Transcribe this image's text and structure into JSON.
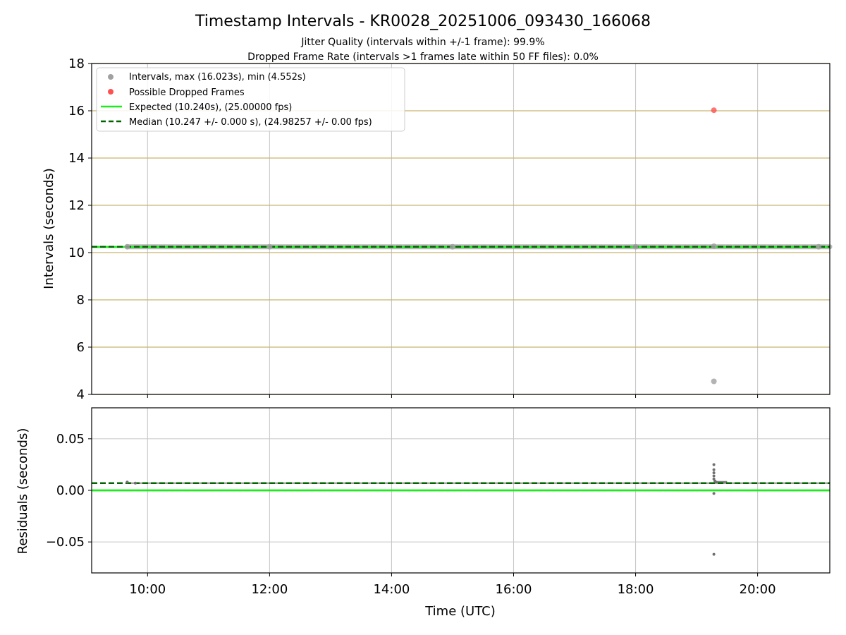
{
  "chart_data": {
    "title": "Timestamp Intervals - KR0028_20251006_093430_166068",
    "subtitle_lines": [
      "Jitter Quality (intervals within +/-1 frame): 99.9%",
      "Dropped Frame Rate (intervals >1 frames late within 50 FF files): 0.0%"
    ],
    "xlabel": "Time (UTC)",
    "x_time_range": [
      "09:05",
      "21:11"
    ],
    "x_ticks": [
      "10:00",
      "12:00",
      "14:00",
      "16:00",
      "18:00",
      "20:00"
    ],
    "grid": true,
    "panels": [
      {
        "type": "scatter",
        "ylabel": "Intervals (seconds)",
        "ylim": [
          4,
          18
        ],
        "y_ticks": [
          "4",
          "6",
          "8",
          "10",
          "12",
          "14",
          "16",
          "18"
        ],
        "legend_position": "top-left",
        "legend": [
          "Intervals, max (16.023s), min (4.552s)",
          "Possible Dropped Frames",
          "Expected (10.240s), (25.00000 fps)",
          "Median (10.247 +/- 0.000 s), (24.98257 +/- 0.00 fps)"
        ],
        "series": [
          {
            "name": "Intervals, max (16.023s), min (4.552s)",
            "kind": "scatter",
            "color": "#a0a0a0",
            "points": [
              {
                "x": "09:40",
                "y": 10.247
              },
              {
                "x": "12:00",
                "y": 10.247
              },
              {
                "x": "15:00",
                "y": 10.247
              },
              {
                "x": "18:00",
                "y": 10.247
              },
              {
                "x": "19:17",
                "y": 10.27
              },
              {
                "x": "19:17",
                "y": 4.552
              },
              {
                "x": "21:00",
                "y": 10.247
              }
            ]
          },
          {
            "name": "Possible Dropped Frames",
            "kind": "scatter",
            "color": "#ff5050",
            "points": [
              {
                "x": "19:17",
                "y": 16.023
              }
            ]
          },
          {
            "name": "Expected (10.240s), (25.00000 fps)",
            "kind": "hline",
            "color": "#1aee1a",
            "y": 10.24
          },
          {
            "name": "Median (10.247 +/- 0.000 s), (24.98257 +/- 0.00 fps)",
            "kind": "hline-dashed",
            "color": "#006400",
            "y": 10.247
          }
        ]
      },
      {
        "type": "scatter",
        "ylabel": "Residuals (seconds)",
        "ylim": [
          -0.08,
          0.08
        ],
        "y_ticks": [
          "−0.05",
          "0.00",
          "0.05"
        ],
        "series": [
          {
            "kind": "scatter",
            "color": "#707070",
            "points": [
              {
                "x": "09:40",
                "y": 0.008
              },
              {
                "x": "09:48",
                "y": 0.007
              },
              {
                "x": "19:17",
                "y": 0.025
              },
              {
                "x": "19:17",
                "y": 0.02
              },
              {
                "x": "19:17",
                "y": 0.017
              },
              {
                "x": "19:17",
                "y": 0.014
              },
              {
                "x": "19:17",
                "y": 0.011
              },
              {
                "x": "19:18",
                "y": 0.009
              },
              {
                "x": "19:19",
                "y": 0.008
              },
              {
                "x": "19:17",
                "y": -0.003
              },
              {
                "x": "19:17",
                "y": -0.062
              }
            ]
          },
          {
            "kind": "hline",
            "color": "#1aee1a",
            "y": 0.0
          },
          {
            "kind": "hline-dashed",
            "color": "#006400",
            "y": 0.007
          }
        ]
      }
    ]
  }
}
